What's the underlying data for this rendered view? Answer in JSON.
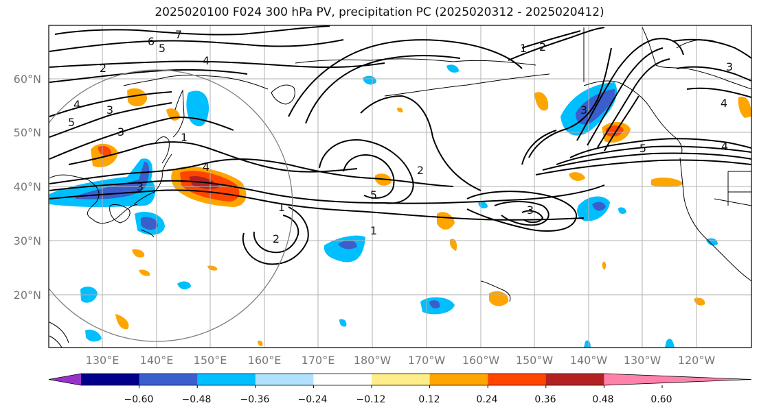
{
  "title": "2025020100 F024 300 hPa PV, precipitation PC (2025020312 - 2025020412)",
  "lat_labels": [
    "60°N",
    "50°N",
    "40°N",
    "30°N",
    "20°N"
  ],
  "lon_labels": [
    "130°E",
    "140°E",
    "150°E",
    "160°E",
    "170°E",
    "180°W",
    "170°W",
    "160°W",
    "150°W",
    "140°W",
    "130°W",
    "120°W"
  ],
  "colorbar": {
    "ticks": [
      "−0.60",
      "−0.48",
      "−0.36",
      "−0.24",
      "−0.12",
      "0.12",
      "0.24",
      "0.36",
      "0.48",
      "0.60"
    ],
    "colors": [
      "#9932cc",
      "#00008b",
      "#3a5fcd",
      "#00bfff",
      "#b0e2ff",
      "#ffffff",
      "#ffec8b",
      "#ffa500",
      "#ff4500",
      "#b22222",
      "#ff82ab"
    ]
  },
  "contour_labels": [
    {
      "text": "7"
    },
    {
      "text": "6"
    },
    {
      "text": "5"
    },
    {
      "text": "4"
    },
    {
      "text": "2"
    },
    {
      "text": "4"
    },
    {
      "text": "5"
    },
    {
      "text": "3"
    },
    {
      "text": "3"
    },
    {
      "text": "1"
    },
    {
      "text": "4"
    },
    {
      "text": "3"
    },
    {
      "text": "1"
    },
    {
      "text": "2"
    },
    {
      "text": "5"
    },
    {
      "text": "2"
    },
    {
      "text": "1"
    },
    {
      "text": "3"
    },
    {
      "text": "3"
    },
    {
      "text": "2"
    },
    {
      "text": "1"
    },
    {
      "text": "5"
    },
    {
      "text": "4"
    },
    {
      "text": "3"
    },
    {
      "text": "4"
    }
  ]
}
